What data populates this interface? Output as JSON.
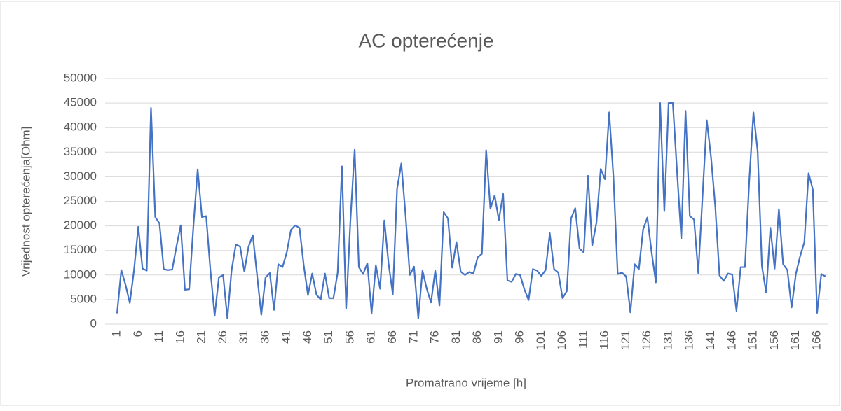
{
  "chart_data": {
    "type": "line",
    "title": "AC opterećenje",
    "x_label": "Promatrano vrijeme [h]",
    "y_label": "Vrijednost opterećenja[Ohm]",
    "categories": [
      1,
      null,
      null,
      null,
      null,
      6,
      null,
      null,
      null,
      null,
      11,
      null,
      null,
      null,
      null,
      16,
      null,
      null,
      null,
      null,
      21,
      null,
      null,
      null,
      null,
      26,
      null,
      null,
      null,
      null,
      31,
      null,
      null,
      null,
      null,
      36,
      null,
      null,
      null,
      null,
      41,
      null,
      null,
      null,
      null,
      46,
      null,
      null,
      null,
      null,
      51,
      null,
      null,
      null,
      null,
      56,
      null,
      null,
      null,
      null,
      61,
      null,
      null,
      null,
      null,
      66,
      null,
      null,
      null,
      null,
      71,
      null,
      null,
      null,
      null,
      76,
      null,
      null,
      null,
      null,
      81,
      null,
      null,
      null,
      null,
      86,
      null,
      null,
      null,
      null,
      91,
      null,
      null,
      null,
      null,
      96,
      null,
      null,
      null,
      null,
      101,
      null,
      null,
      null,
      null,
      106,
      null,
      null,
      null,
      null,
      111,
      null,
      null,
      null,
      null,
      116,
      null,
      null,
      null,
      null,
      121,
      null,
      null,
      null,
      null,
      126,
      null,
      null,
      null,
      null,
      131,
      null,
      null,
      null,
      null,
      136,
      null,
      null,
      null,
      null,
      141,
      null,
      null,
      null,
      null,
      146,
      null,
      null,
      null,
      null,
      151,
      null,
      null,
      null,
      null,
      156,
      null,
      null,
      null,
      null,
      161,
      null,
      null,
      null,
      null,
      166,
      null,
      null
    ],
    "values": [
      2200,
      11000,
      8000,
      4300,
      11000,
      19800,
      11300,
      10900,
      44000,
      21800,
      20500,
      11200,
      11000,
      11100,
      15800,
      20100,
      7000,
      7100,
      20000,
      31500,
      21800,
      22000,
      11000,
      1700,
      9500,
      10000,
      1200,
      11000,
      16200,
      15800,
      10700,
      15800,
      18100,
      10000,
      1900,
      9500,
      10400,
      2900,
      12200,
      11600,
      14600,
      19200,
      20100,
      19600,
      12000,
      5900,
      10300,
      6000,
      5000,
      10300,
      5300,
      5300,
      10500,
      32100,
      3200,
      21000,
      35500,
      11600,
      10200,
      12400,
      2200,
      12000,
      7200,
      21100,
      12300,
      6100,
      27500,
      32700,
      22200,
      10000,
      11700,
      1200,
      10900,
      7200,
      4400,
      10900,
      3800,
      22800,
      21500,
      11500,
      16700,
      10700,
      10000,
      10600,
      10300,
      13600,
      14300,
      35400,
      23500,
      26200,
      21200,
      26500,
      8900,
      8600,
      10200,
      10000,
      7100,
      4900,
      11200,
      10900,
      9800,
      11000,
      18500,
      11200,
      10500,
      5300,
      6700,
      21500,
      23600,
      15400,
      14600,
      30200,
      16000,
      20700,
      31600,
      29500,
      43100,
      30000,
      10200,
      10500,
      9700,
      2400,
      12200,
      11200,
      19300,
      21700,
      14600,
      8500,
      45000,
      23000,
      45000,
      45000,
      31000,
      17400,
      43400,
      22000,
      21300,
      10400,
      26000,
      41500,
      34000,
      24000,
      9900,
      8800,
      10300,
      10100,
      2700,
      11600,
      11600,
      29000,
      43100,
      35100,
      11800,
      6400,
      19600,
      11300,
      23400,
      12200,
      11000,
      3400,
      10200,
      13800,
      16700,
      30700,
      27400,
      2300,
      10200,
      9700
    ],
    "color": "#4472c4",
    "ylim": [
      0,
      50000
    ],
    "yticks": [
      0,
      5000,
      10000,
      15000,
      20000,
      25000,
      30000,
      35000,
      40000,
      45000,
      50000
    ],
    "grid": true
  }
}
